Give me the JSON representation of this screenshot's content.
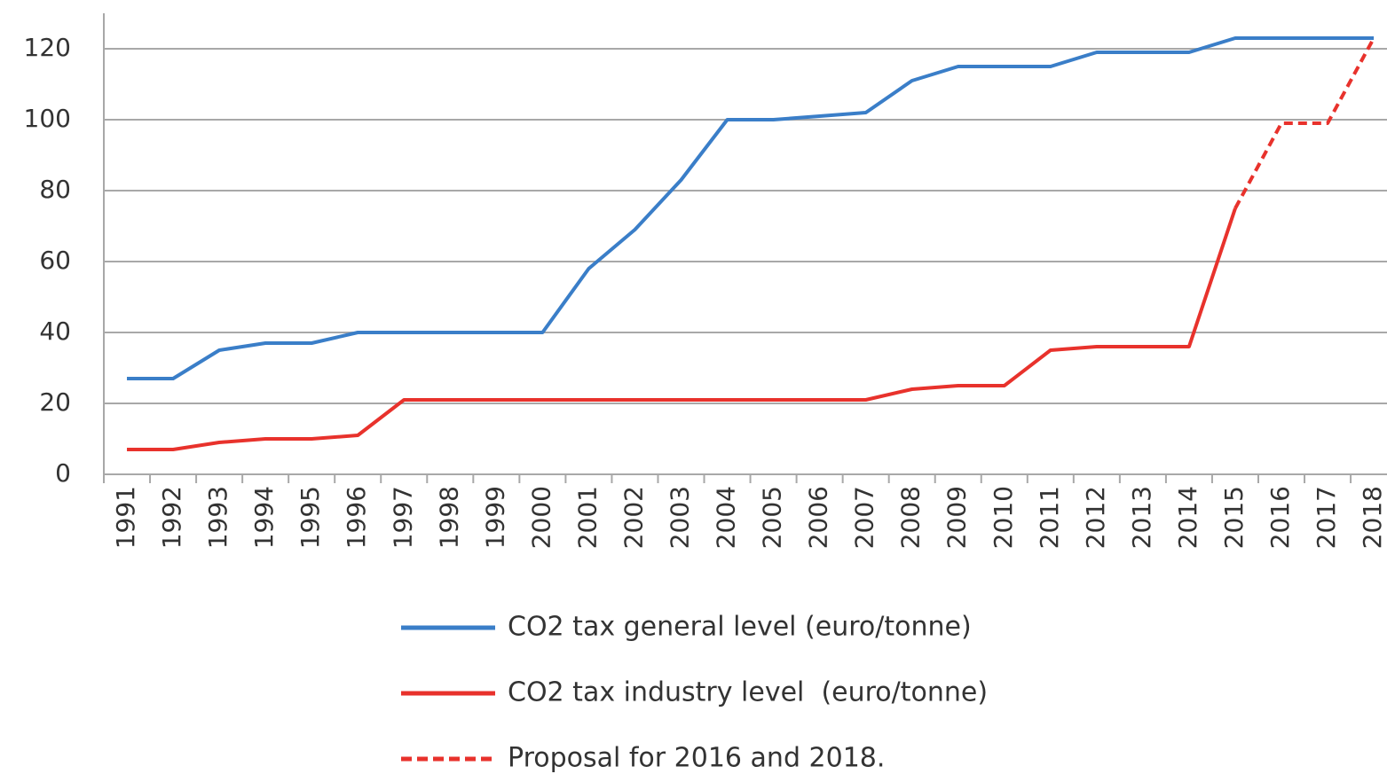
{
  "chart_data": {
    "type": "line",
    "categories": [
      "1991",
      "1992",
      "1993",
      "1994",
      "1995",
      "1996",
      "1997",
      "1998",
      "1999",
      "2000",
      "2001",
      "2002",
      "2003",
      "2004",
      "2005",
      "2006",
      "2007",
      "2008",
      "2009",
      "2010",
      "2011",
      "2012",
      "2013",
      "2014",
      "2015",
      "2016",
      "2017",
      "2018"
    ],
    "series": [
      {
        "name": "CO2 tax general level (euro/tonne)",
        "color": "#3a7ec8",
        "dashed": false,
        "values": [
          27,
          27,
          35,
          37,
          37,
          40,
          40,
          40,
          40,
          40,
          58,
          69,
          83,
          100,
          100,
          101,
          102,
          111,
          115,
          115,
          115,
          119,
          119,
          119,
          123,
          123,
          123,
          123
        ]
      },
      {
        "name": "CO2 tax industry level  (euro/tonne)",
        "color": "#e8322c",
        "dashed": false,
        "values": [
          7,
          7,
          9,
          10,
          10,
          11,
          21,
          21,
          21,
          21,
          21,
          21,
          21,
          21,
          21,
          21,
          21,
          24,
          25,
          25,
          35,
          36,
          36,
          36,
          75,
          null,
          null,
          null
        ]
      },
      {
        "name": "Proposal for 2016 and 2018.",
        "color": "#e8322c",
        "dashed": true,
        "values": [
          null,
          null,
          null,
          null,
          null,
          null,
          null,
          null,
          null,
          null,
          null,
          null,
          null,
          null,
          null,
          null,
          null,
          null,
          null,
          null,
          null,
          null,
          null,
          null,
          75,
          99,
          99,
          123
        ]
      }
    ],
    "ylim": [
      0,
      130
    ],
    "yticks": [
      0,
      20,
      40,
      60,
      80,
      100,
      120
    ],
    "grid": true
  }
}
